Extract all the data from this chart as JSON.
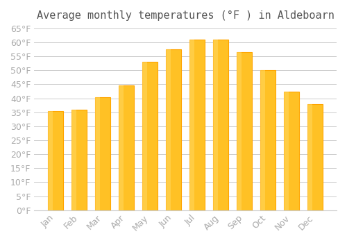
{
  "title": "Average monthly temperatures (°F ) in Aldeboarn",
  "months": [
    "Jan",
    "Feb",
    "Mar",
    "Apr",
    "May",
    "Jun",
    "Jul",
    "Aug",
    "Sep",
    "Oct",
    "Nov",
    "Dec"
  ],
  "values": [
    35.5,
    36.0,
    40.5,
    44.5,
    53.0,
    57.5,
    61.0,
    61.0,
    56.5,
    50.0,
    42.5,
    38.0
  ],
  "bar_color_face": "#FFC125",
  "bar_color_edge": "#FFA500",
  "background_color": "#FFFFFF",
  "grid_color": "#CCCCCC",
  "text_color": "#AAAAAA",
  "ylim": [
    0,
    65
  ],
  "yticks": [
    0,
    5,
    10,
    15,
    20,
    25,
    30,
    35,
    40,
    45,
    50,
    55,
    60,
    65
  ],
  "title_fontsize": 11,
  "tick_fontsize": 9
}
